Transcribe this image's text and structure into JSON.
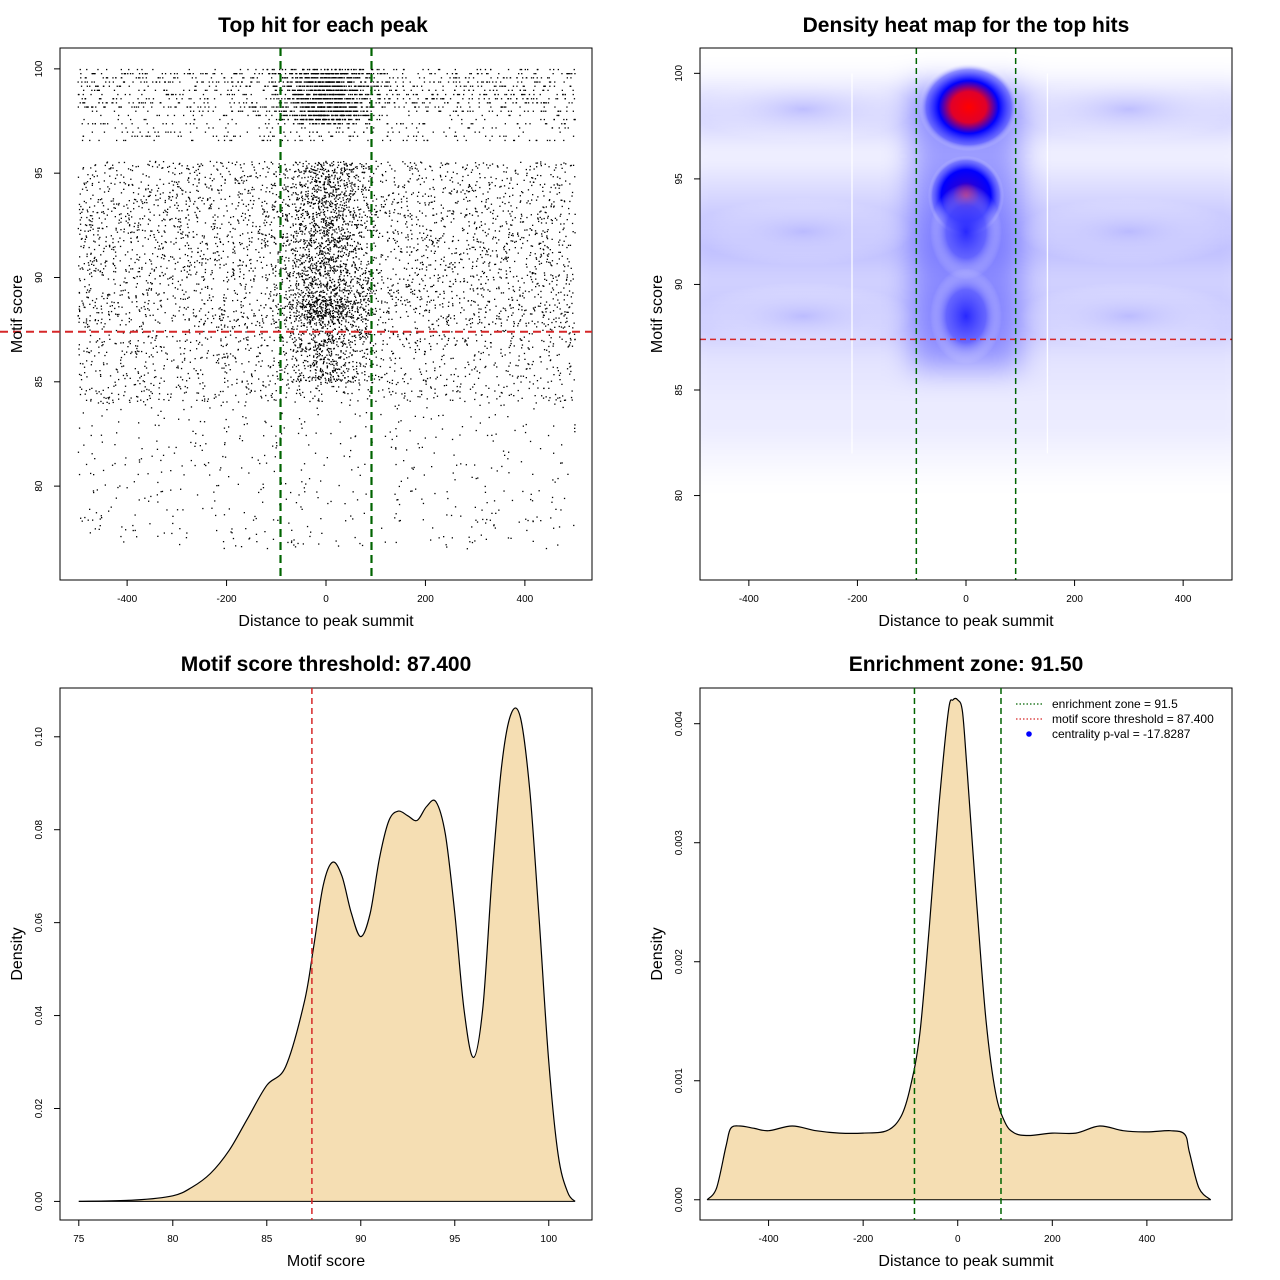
{
  "colors": {
    "threshold_line": "#d62728",
    "zone_line": "#006400",
    "density_fill": "#f5deb3",
    "heat_low": "#ffffff",
    "heat_mid": "#0000ff",
    "heat_high": "#ff0000",
    "point": "#000000"
  },
  "chart_data": [
    {
      "type": "scatter",
      "title": "Top hit for each peak",
      "xlabel": "Distance to peak summit",
      "ylabel": "Motif score",
      "xlim": [
        -535,
        535
      ],
      "ylim": [
        75.5,
        101
      ],
      "xticks": [
        -400,
        -200,
        0,
        200,
        400
      ],
      "xtick_labels": [
        "-400",
        "-200",
        "0",
        "200",
        "400"
      ],
      "yticks": [
        80,
        85,
        90,
        95,
        100
      ],
      "ytick_labels": [
        "80",
        "85",
        "90",
        "95",
        "100"
      ],
      "threshold_y": 87.4,
      "zone_x": [
        -91.5,
        91.5
      ],
      "point_density": {
        "x_range": [
          -500,
          500
        ],
        "center_band": [
          -95,
          95
        ],
        "score_peaks": [
          88.5,
          92.5,
          94,
          98.3
        ]
      }
    },
    {
      "type": "heatmap",
      "title": "Density heat map for the top hits",
      "xlabel": "Distance to peak summit",
      "ylabel": "Motif score",
      "xlim": [
        -490,
        490
      ],
      "ylim": [
        76,
        101.2
      ],
      "xticks": [
        -400,
        -200,
        0,
        200,
        400
      ],
      "xtick_labels": [
        "-400",
        "-200",
        "0",
        "200",
        "400"
      ],
      "yticks": [
        80,
        85,
        90,
        95,
        100
      ],
      "ytick_labels": [
        "80",
        "85",
        "90",
        "95",
        "100"
      ],
      "threshold_y": 87.4,
      "zone_x": [
        -91.5,
        91.5
      ],
      "hotspots": [
        {
          "x": 5,
          "y": 98.4,
          "level": "high"
        },
        {
          "x": 0,
          "y": 94.2,
          "level": "high"
        },
        {
          "x": 0,
          "y": 92.5,
          "level": "medium"
        },
        {
          "x": 0,
          "y": 88.5,
          "level": "medium"
        },
        {
          "x": -300,
          "y": 92.5,
          "level": "low"
        },
        {
          "x": 300,
          "y": 92.5,
          "level": "low"
        },
        {
          "x": -300,
          "y": 88.5,
          "level": "low"
        },
        {
          "x": 300,
          "y": 88.5,
          "level": "low"
        },
        {
          "x": -300,
          "y": 98.3,
          "level": "low"
        },
        {
          "x": 300,
          "y": 98.3,
          "level": "low"
        }
      ]
    },
    {
      "type": "area",
      "title": "Motif score threshold: 87.400",
      "xlabel": "Motif score",
      "ylabel": "Density",
      "xlim": [
        74,
        102.3
      ],
      "ylim": [
        -0.004,
        0.1105
      ],
      "xticks": [
        75,
        80,
        85,
        90,
        95,
        100
      ],
      "xtick_labels": [
        "75",
        "80",
        "85",
        "90",
        "95",
        "100"
      ],
      "yticks": [
        0,
        0.02,
        0.04,
        0.06,
        0.08,
        0.1
      ],
      "ytick_labels": [
        "0.00",
        "0.02",
        "0.04",
        "0.06",
        "0.08",
        "0.10"
      ],
      "threshold_x": 87.4,
      "x": [
        75,
        78,
        80,
        81,
        82,
        83,
        84,
        85,
        86,
        87,
        87.5,
        88,
        88.5,
        89,
        89.5,
        90,
        90.5,
        91,
        91.5,
        92,
        92.5,
        93,
        93.5,
        94,
        94.5,
        95,
        95.5,
        96,
        96.5,
        97,
        97.5,
        98,
        98.5,
        99,
        99.5,
        100,
        100.5,
        101,
        101.4
      ],
      "y": [
        0,
        0.0003,
        0.0012,
        0.003,
        0.006,
        0.011,
        0.018,
        0.025,
        0.029,
        0.043,
        0.055,
        0.068,
        0.073,
        0.07,
        0.062,
        0.057,
        0.062,
        0.074,
        0.082,
        0.084,
        0.083,
        0.082,
        0.085,
        0.086,
        0.079,
        0.062,
        0.041,
        0.031,
        0.042,
        0.071,
        0.094,
        0.105,
        0.104,
        0.088,
        0.06,
        0.03,
        0.01,
        0.002,
        0
      ]
    },
    {
      "type": "area",
      "title": "Enrichment zone: 91.50",
      "xlabel": "Distance to peak summit",
      "ylabel": "Density",
      "xlim": [
        -545,
        580
      ],
      "ylim": [
        -0.00017,
        0.0043
      ],
      "xticks": [
        -400,
        -200,
        0,
        200,
        400
      ],
      "xtick_labels": [
        "-400",
        "-200",
        "0",
        "200",
        "400"
      ],
      "yticks": [
        0,
        0.001,
        0.002,
        0.003,
        0.004
      ],
      "ytick_labels": [
        "0.000",
        "0.001",
        "0.002",
        "0.003",
        "0.004"
      ],
      "zone_x": [
        -91.5,
        91.5
      ],
      "x": [
        -530,
        -510,
        -490,
        -480,
        -460,
        -430,
        -400,
        -350,
        -300,
        -250,
        -200,
        -150,
        -120,
        -100,
        -80,
        -60,
        -40,
        -20,
        -10,
        0,
        10,
        20,
        40,
        60,
        80,
        100,
        120,
        150,
        200,
        250,
        300,
        350,
        400,
        450,
        480,
        490,
        510,
        535
      ],
      "y": [
        0,
        0.0001,
        0.00045,
        0.0006,
        0.00062,
        0.0006,
        0.00058,
        0.00062,
        0.00058,
        0.00056,
        0.00056,
        0.00058,
        0.0007,
        0.00095,
        0.0014,
        0.0023,
        0.0033,
        0.0041,
        0.0042,
        0.0042,
        0.0041,
        0.0036,
        0.0025,
        0.0015,
        0.0009,
        0.00065,
        0.00056,
        0.00054,
        0.00056,
        0.00056,
        0.00062,
        0.00058,
        0.00057,
        0.00058,
        0.00055,
        0.0004,
        0.0001,
        0
      ],
      "legend": {
        "placement": "top-right",
        "items": [
          {
            "label": "enrichment zone = 91.5",
            "style": "dotted",
            "color": "#006400"
          },
          {
            "label": "motif score threshold = 87.400",
            "style": "dotted",
            "color": "#d62728"
          },
          {
            "label": "centrality p-val = -17.8287",
            "style": "point",
            "color": "#0000ff"
          }
        ]
      }
    }
  ]
}
